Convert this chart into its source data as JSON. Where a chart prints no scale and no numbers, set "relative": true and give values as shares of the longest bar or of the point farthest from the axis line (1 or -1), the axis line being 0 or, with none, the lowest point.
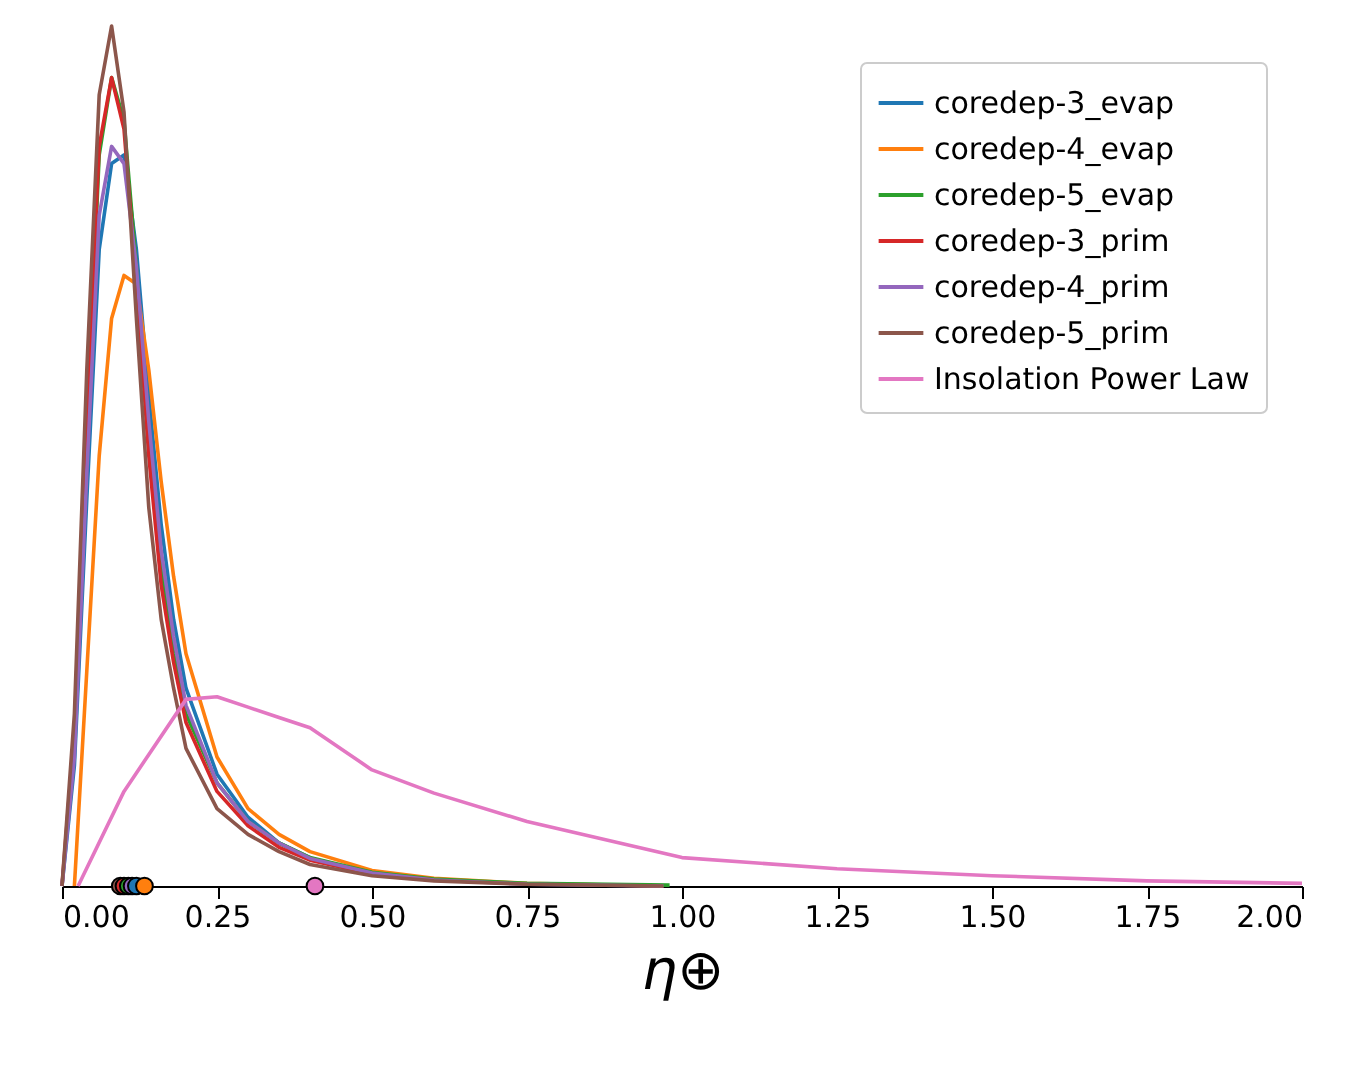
{
  "chart_data": {
    "type": "line",
    "xlabel": "η⊕",
    "relative": true,
    "xlim": [
      0,
      2
    ],
    "xticks": [
      {
        "value": 0,
        "label": "0.00"
      },
      0.25,
      {
        "value": 0.5,
        "label": "0.50"
      },
      0.75,
      {
        "value": 1,
        "label": "1.00"
      },
      1.25,
      {
        "value": 1.5,
        "label": "1.50"
      },
      1.75,
      {
        "value": 2,
        "label": "2.00"
      }
    ],
    "grid": false,
    "legend": "top right",
    "line_style": "solid",
    "series": [
      {
        "name": "coredep-3_evap",
        "color": "#1f77b4",
        "x": [
          0,
          0.02,
          0.04,
          0.06,
          0.08,
          0.1,
          0.12,
          0.14,
          0.16,
          0.18,
          0.2,
          0.25,
          0.3,
          0.35,
          0.4
        ],
        "values": [
          0,
          0.14,
          0.45,
          0.74,
          0.84,
          0.85,
          0.74,
          0.57,
          0.42,
          0.31,
          0.23,
          0.13,
          0.08,
          0.05,
          0.033
        ]
      },
      {
        "name": "coredep-4_evap",
        "color": "#ff7f0e",
        "x": [
          0.02,
          0.04,
          0.06,
          0.08,
          0.1,
          0.12,
          0.14,
          0.16,
          0.18,
          0.2,
          0.25,
          0.3,
          0.35,
          0.4,
          0.5,
          0.6,
          0.75,
          0.97
        ],
        "values": [
          0,
          0.25,
          0.5,
          0.66,
          0.71,
          0.7,
          0.6,
          0.47,
          0.36,
          0.27,
          0.15,
          0.09,
          0.06,
          0.04,
          0.018,
          0.009,
          0.003,
          0
        ]
      },
      {
        "name": "coredep-5_evap",
        "color": "#2ca02c",
        "x": [
          0.04,
          0.06,
          0.08,
          0.1,
          0.12,
          0.14,
          0.16,
          0.18,
          0.2,
          0.25,
          0.3,
          0.35,
          0.4,
          0.5,
          0.6,
          0.75,
          0.98
        ],
        "values": [
          0.53,
          0.85,
          0.94,
          0.89,
          0.72,
          0.52,
          0.37,
          0.27,
          0.2,
          0.12,
          0.075,
          0.05,
          0.033,
          0.016,
          0.008,
          0.003,
          0.001
        ]
      },
      {
        "name": "coredep-3_prim",
        "color": "#d62728",
        "x": [
          0,
          0.02,
          0.04,
          0.06,
          0.08,
          0.1,
          0.12,
          0.14,
          0.16,
          0.18,
          0.2,
          0.25,
          0.3,
          0.35,
          0.4,
          0.5,
          0.6
        ],
        "values": [
          0,
          0.18,
          0.55,
          0.86,
          0.94,
          0.88,
          0.7,
          0.5,
          0.35,
          0.26,
          0.19,
          0.11,
          0.07,
          0.045,
          0.03,
          0.014,
          0.007
        ]
      },
      {
        "name": "coredep-4_prim",
        "color": "#9467bd",
        "x": [
          0,
          0.02,
          0.04,
          0.06,
          0.08,
          0.1,
          0.12,
          0.14,
          0.16,
          0.18,
          0.2,
          0.25,
          0.3,
          0.35,
          0.4,
          0.5,
          0.6,
          0.75,
          0.97
        ],
        "values": [
          0,
          0.15,
          0.48,
          0.78,
          0.86,
          0.84,
          0.72,
          0.54,
          0.39,
          0.29,
          0.21,
          0.12,
          0.075,
          0.05,
          0.032,
          0.015,
          0.007,
          0.002,
          0
        ]
      },
      {
        "name": "coredep-5_prim",
        "color": "#8c564b",
        "x": [
          0,
          0.02,
          0.04,
          0.06,
          0.08,
          0.1,
          0.12,
          0.14,
          0.16,
          0.18,
          0.2,
          0.25,
          0.3,
          0.35,
          0.4,
          0.5,
          0.6,
          0.75,
          0.97
        ],
        "values": [
          0,
          0.2,
          0.6,
          0.92,
          1.0,
          0.9,
          0.66,
          0.44,
          0.31,
          0.23,
          0.16,
          0.09,
          0.06,
          0.04,
          0.025,
          0.012,
          0.006,
          0.002,
          0
        ]
      },
      {
        "name": "Insolation Power Law",
        "color": "#e377c2",
        "x": [
          0.026,
          0.1,
          0.2,
          0.25,
          0.3,
          0.35,
          0.4,
          0.5,
          0.6,
          0.75,
          1.0,
          1.25,
          1.5,
          1.75,
          2.0
        ],
        "values": [
          0,
          0.11,
          0.217,
          0.22,
          0.208,
          0.196,
          0.184,
          0.135,
          0.108,
          0.075,
          0.033,
          0.02,
          0.012,
          0.006,
          0.003
        ]
      },
      {
        "type": "scatter",
        "marker": "circle",
        "x": [
          0.094,
          0.1,
          0.107,
          0.113,
          0.12,
          0.133,
          0.408
        ],
        "values": [
          0,
          0,
          0,
          0,
          0,
          0,
          0
        ],
        "colors": [
          "#8c564b",
          "#d62728",
          "#2ca02c",
          "#9467bd",
          "#1f77b4",
          "#ff7f0e",
          "#e377c2"
        ]
      }
    ]
  }
}
